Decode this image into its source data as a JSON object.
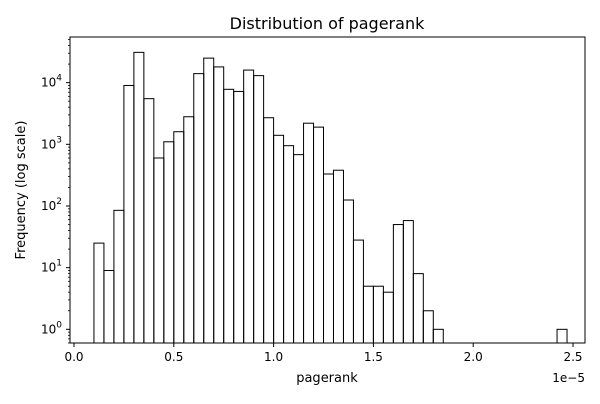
{
  "chart_data": {
    "type": "bar",
    "title": "Distribution of pagerank",
    "xlabel": "pagerank",
    "ylabel": "Frequency (log scale)",
    "x_offset_label": "1e−5",
    "x_scale_multiplier": 1e-05,
    "y_scale": "log",
    "grid": false,
    "legend": "none",
    "xlim": [
      -0.02,
      2.56
    ],
    "ylim": [
      0.6,
      55000
    ],
    "x_ticks": [
      {
        "value": 0.0,
        "label": "0.0"
      },
      {
        "value": 0.5,
        "label": "0.5"
      },
      {
        "value": 1.0,
        "label": "1.0"
      },
      {
        "value": 1.5,
        "label": "1.5"
      },
      {
        "value": 2.0,
        "label": "2.0"
      },
      {
        "value": 2.5,
        "label": "2.5"
      }
    ],
    "y_ticks": [
      {
        "value": 1,
        "exp": "0"
      },
      {
        "value": 10,
        "exp": "1"
      },
      {
        "value": 100,
        "exp": "2"
      },
      {
        "value": 1000,
        "exp": "3"
      },
      {
        "value": 10000,
        "exp": "4"
      }
    ],
    "bins": [
      {
        "x0": 0.1,
        "x1": 0.15,
        "count": 25
      },
      {
        "x0": 0.15,
        "x1": 0.2,
        "count": 9
      },
      {
        "x0": 0.2,
        "x1": 0.25,
        "count": 85
      },
      {
        "x0": 0.25,
        "x1": 0.3,
        "count": 9000
      },
      {
        "x0": 0.3,
        "x1": 0.35,
        "count": 31000
      },
      {
        "x0": 0.35,
        "x1": 0.4,
        "count": 5500
      },
      {
        "x0": 0.4,
        "x1": 0.45,
        "count": 600
      },
      {
        "x0": 0.45,
        "x1": 0.5,
        "count": 1100
      },
      {
        "x0": 0.5,
        "x1": 0.55,
        "count": 1600
      },
      {
        "x0": 0.55,
        "x1": 0.6,
        "count": 2800
      },
      {
        "x0": 0.6,
        "x1": 0.65,
        "count": 14000
      },
      {
        "x0": 0.65,
        "x1": 0.7,
        "count": 25000
      },
      {
        "x0": 0.7,
        "x1": 0.75,
        "count": 18000
      },
      {
        "x0": 0.75,
        "x1": 0.8,
        "count": 7800
      },
      {
        "x0": 0.8,
        "x1": 0.85,
        "count": 7200
      },
      {
        "x0": 0.85,
        "x1": 0.9,
        "count": 16000
      },
      {
        "x0": 0.9,
        "x1": 0.95,
        "count": 13000
      },
      {
        "x0": 0.95,
        "x1": 1.0,
        "count": 2700
      },
      {
        "x0": 1.0,
        "x1": 1.05,
        "count": 1400
      },
      {
        "x0": 1.05,
        "x1": 1.1,
        "count": 950
      },
      {
        "x0": 1.1,
        "x1": 1.15,
        "count": 680
      },
      {
        "x0": 1.15,
        "x1": 1.2,
        "count": 2200
      },
      {
        "x0": 1.2,
        "x1": 1.25,
        "count": 1900
      },
      {
        "x0": 1.25,
        "x1": 1.3,
        "count": 330
      },
      {
        "x0": 1.3,
        "x1": 1.35,
        "count": 380
      },
      {
        "x0": 1.35,
        "x1": 1.4,
        "count": 125
      },
      {
        "x0": 1.4,
        "x1": 1.45,
        "count": 28
      },
      {
        "x0": 1.45,
        "x1": 1.5,
        "count": 5
      },
      {
        "x0": 1.5,
        "x1": 1.55,
        "count": 5
      },
      {
        "x0": 1.55,
        "x1": 1.6,
        "count": 4
      },
      {
        "x0": 1.6,
        "x1": 1.65,
        "count": 50
      },
      {
        "x0": 1.65,
        "x1": 1.7,
        "count": 58
      },
      {
        "x0": 1.7,
        "x1": 1.75,
        "count": 8
      },
      {
        "x0": 1.75,
        "x1": 1.8,
        "count": 2
      },
      {
        "x0": 1.8,
        "x1": 1.85,
        "count": 1
      },
      {
        "x0": 2.42,
        "x1": 2.47,
        "count": 1
      }
    ]
  }
}
